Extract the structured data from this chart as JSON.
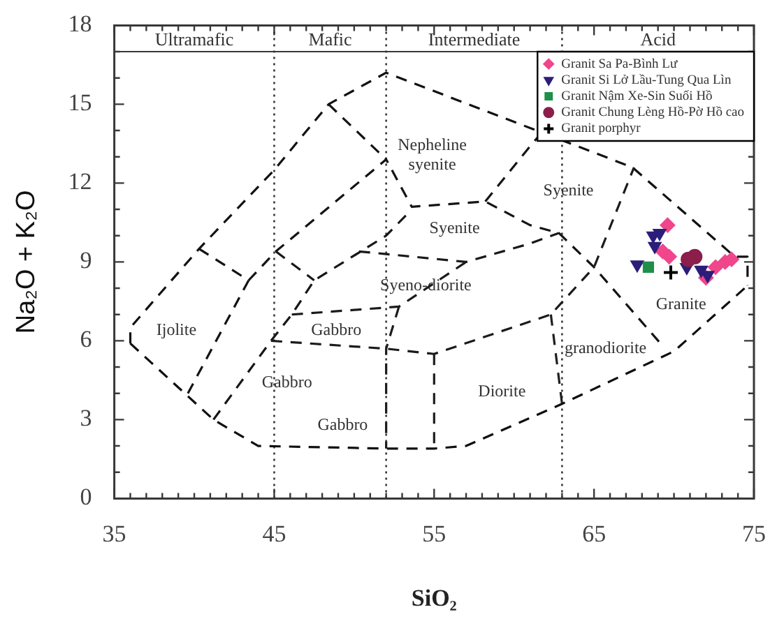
{
  "chart_data": {
    "type": "scatter",
    "xlabel": "SiO₂",
    "ylabel": "Na₂O + K₂O",
    "xlim": [
      35,
      75
    ],
    "ylim": [
      0,
      18
    ],
    "xticks": [
      35,
      {
        "value": 36,
        "label": null
      },
      {
        "value": 37,
        "label": null
      },
      {
        "value": 38,
        "label": null
      },
      {
        "value": 39,
        "label": null
      },
      {
        "value": 40,
        "label": null
      },
      {
        "value": 41,
        "label": null
      },
      {
        "value": 42,
        "label": null
      },
      {
        "value": 43,
        "label": null
      },
      {
        "value": 44,
        "label": null
      },
      45,
      {
        "value": 46,
        "label": null
      },
      {
        "value": 47,
        "label": null
      },
      {
        "value": 48,
        "label": null
      },
      {
        "value": 49,
        "label": null
      },
      {
        "value": 50,
        "label": null
      },
      {
        "value": 51,
        "label": null
      },
      {
        "value": 52,
        "label": null
      },
      {
        "value": 53,
        "label": null
      },
      {
        "value": 54,
        "label": null
      },
      55,
      {
        "value": 56,
        "label": null
      },
      {
        "value": 57,
        "label": null
      },
      {
        "value": 58,
        "label": null
      },
      {
        "value": 59,
        "label": null
      },
      {
        "value": 60,
        "label": null
      },
      {
        "value": 61,
        "label": null
      },
      {
        "value": 62,
        "label": null
      },
      {
        "value": 63,
        "label": null
      },
      {
        "value": 64,
        "label": null
      },
      65,
      {
        "value": 66,
        "label": null
      },
      {
        "value": 67,
        "label": null
      },
      {
        "value": 68,
        "label": null
      },
      {
        "value": 69,
        "label": null
      },
      {
        "value": 70,
        "label": null
      },
      {
        "value": 71,
        "label": null
      },
      {
        "value": 72,
        "label": null
      },
      {
        "value": 73,
        "label": null
      },
      {
        "value": 74,
        "label": null
      },
      75
    ],
    "yticks": [
      0,
      {
        "value": 1,
        "label": null
      },
      {
        "value": 2,
        "label": null
      },
      3,
      {
        "value": 4,
        "label": null
      },
      {
        "value": 5,
        "label": null
      },
      6,
      {
        "value": 7,
        "label": null
      },
      {
        "value": 8,
        "label": null
      },
      9,
      {
        "value": 10,
        "label": null
      },
      {
        "value": 11,
        "label": null
      },
      12,
      {
        "value": 13,
        "label": null
      },
      {
        "value": 14,
        "label": null
      },
      15,
      {
        "value": 16,
        "label": null
      },
      {
        "value": 17,
        "label": null
      },
      18
    ],
    "line_style": "dashed",
    "legend": "top right",
    "series": [
      {
        "name": "Granit Sa Pa-Bình Lư",
        "type": "scatter",
        "marker": "diamond",
        "color": "#f0468c",
        "x": [
          69.6,
          69.3,
          69.7,
          72.0,
          72.6,
          73.2,
          73.6
        ],
        "values": [
          10.4,
          9.4,
          9.2,
          8.4,
          8.8,
          9.0,
          9.1
        ]
      },
      {
        "name": "Granit Si Lở Lầu-Tung Qua Lìn",
        "type": "scatter",
        "marker": "triangle",
        "color": "#2a1e7a",
        "x": [
          68.7,
          69.1,
          68.8,
          67.7,
          70.8,
          71.7,
          72.1
        ],
        "values": [
          10.0,
          10.1,
          9.6,
          8.9,
          8.8,
          8.7,
          8.5
        ]
      },
      {
        "name": "Granit Nậm Xe-Sin Suối Hồ",
        "type": "scatter",
        "marker": "square",
        "color": "#1f8f4a",
        "x": [
          68.4
        ],
        "values": [
          8.8
        ]
      },
      {
        "name": "Granit Chung Lèng Hồ-Pờ Hồ cao",
        "type": "scatter",
        "marker": "circle",
        "color": "#8b1e4a",
        "x": [
          71.3,
          70.9
        ],
        "values": [
          9.2,
          9.1
        ]
      },
      {
        "name": "Granit porphyr",
        "type": "scatter",
        "marker": "cross",
        "color": "#000000",
        "x": [
          69.8
        ],
        "values": [
          8.6
        ]
      },
      {
        "type": "line",
        "color": "#121212",
        "x": [
          36,
          36,
          40.3,
          45,
          48.4,
          52,
          67.4,
          73.8,
          74.6,
          74.6
        ],
        "values": [
          5.9,
          6.5,
          9.5,
          12.5,
          15,
          16.2,
          12.6,
          9.2,
          9.2,
          8.1
        ]
      },
      {
        "type": "line",
        "color": "#101010",
        "x": [
          36,
          41.2,
          44,
          52,
          55,
          57,
          63,
          70,
          74.6
        ],
        "values": [
          5.9,
          3.0,
          2.0,
          1.9,
          1.9,
          2.0,
          3.6,
          5.6,
          8.1
        ]
      },
      {
        "type": "line",
        "color": "#131313",
        "x": [
          40.3,
          43.4,
          39.6
        ],
        "values": [
          9.5,
          8.3,
          4.0
        ]
      },
      {
        "type": "line",
        "color": "#141414",
        "x": [
          43.4,
          45.1,
          52,
          53.6,
          58.2,
          61,
          62.8,
          65,
          69.3
        ],
        "values": [
          8.3,
          9.4,
          12.9,
          11.1,
          11.3,
          10.4,
          10.1,
          8.8,
          5.8
        ]
      },
      {
        "type": "line",
        "color": "#151515",
        "x": [
          48.4,
          52
        ],
        "values": [
          15,
          12.9
        ]
      },
      {
        "type": "line",
        "color": "#161616",
        "x": [
          58.2,
          61,
          61.7
        ],
        "values": [
          11.3,
          13.4,
          13.9
        ]
      },
      {
        "type": "line",
        "color": "#171717",
        "x": [
          41.2,
          44.8,
          46.1,
          47.5,
          52,
          53.6
        ],
        "values": [
          3.0,
          6.0,
          7.0,
          8.3,
          10.0,
          11.0
        ]
      },
      {
        "type": "line",
        "color": "#181818",
        "x": [
          45.1,
          47.5
        ],
        "values": [
          9.4,
          8.3
        ]
      },
      {
        "type": "line",
        "color": "#191919",
        "x": [
          50.3,
          52,
          57,
          61,
          62.8
        ],
        "values": [
          9.4,
          9.3,
          9.0,
          9.7,
          10.1
        ]
      },
      {
        "type": "line",
        "color": "#1a1a1a",
        "x": [
          46.1,
          52.8,
          57
        ],
        "values": [
          7.0,
          7.3,
          9.0
        ]
      },
      {
        "type": "line",
        "color": "#1b1b1b",
        "x": [
          44.8,
          52,
          55,
          62.3,
          65,
          67.5
        ],
        "values": [
          6.0,
          5.7,
          5.5,
          7.0,
          8.8,
          12.6
        ]
      },
      {
        "type": "line",
        "color": "#1c1c1c",
        "x": [
          52.8,
          52,
          52
        ],
        "values": [
          7.3,
          5.7,
          1.9
        ]
      },
      {
        "type": "line",
        "color": "#1d1d1d",
        "x": [
          55,
          55
        ],
        "values": [
          5.5,
          1.9
        ]
      },
      {
        "type": "line",
        "color": "#1e1e1e",
        "x": [
          62.3,
          63
        ],
        "values": [
          7.0,
          3.6
        ]
      }
    ],
    "ref_lines": [
      {
        "axis": "x",
        "value": 45,
        "line_style": "dotted"
      },
      {
        "axis": "x",
        "value": 52,
        "line_style": "dotted"
      },
      {
        "axis": "x",
        "value": 63,
        "line_style": "dotted"
      },
      {
        "axis": "y",
        "value": 17,
        "line_style": "solid"
      }
    ],
    "annotations": [
      "Ultramafic",
      "Mafic",
      "Intermediate",
      "Acid",
      "Nepheline\nsyenite",
      "Syenite",
      "Syenite",
      "Syeno-diorite",
      "Ijolite",
      "Gabbro",
      "Gabbro",
      "Gabbro",
      "Diorite",
      "granodiorite",
      "Granite"
    ]
  }
}
